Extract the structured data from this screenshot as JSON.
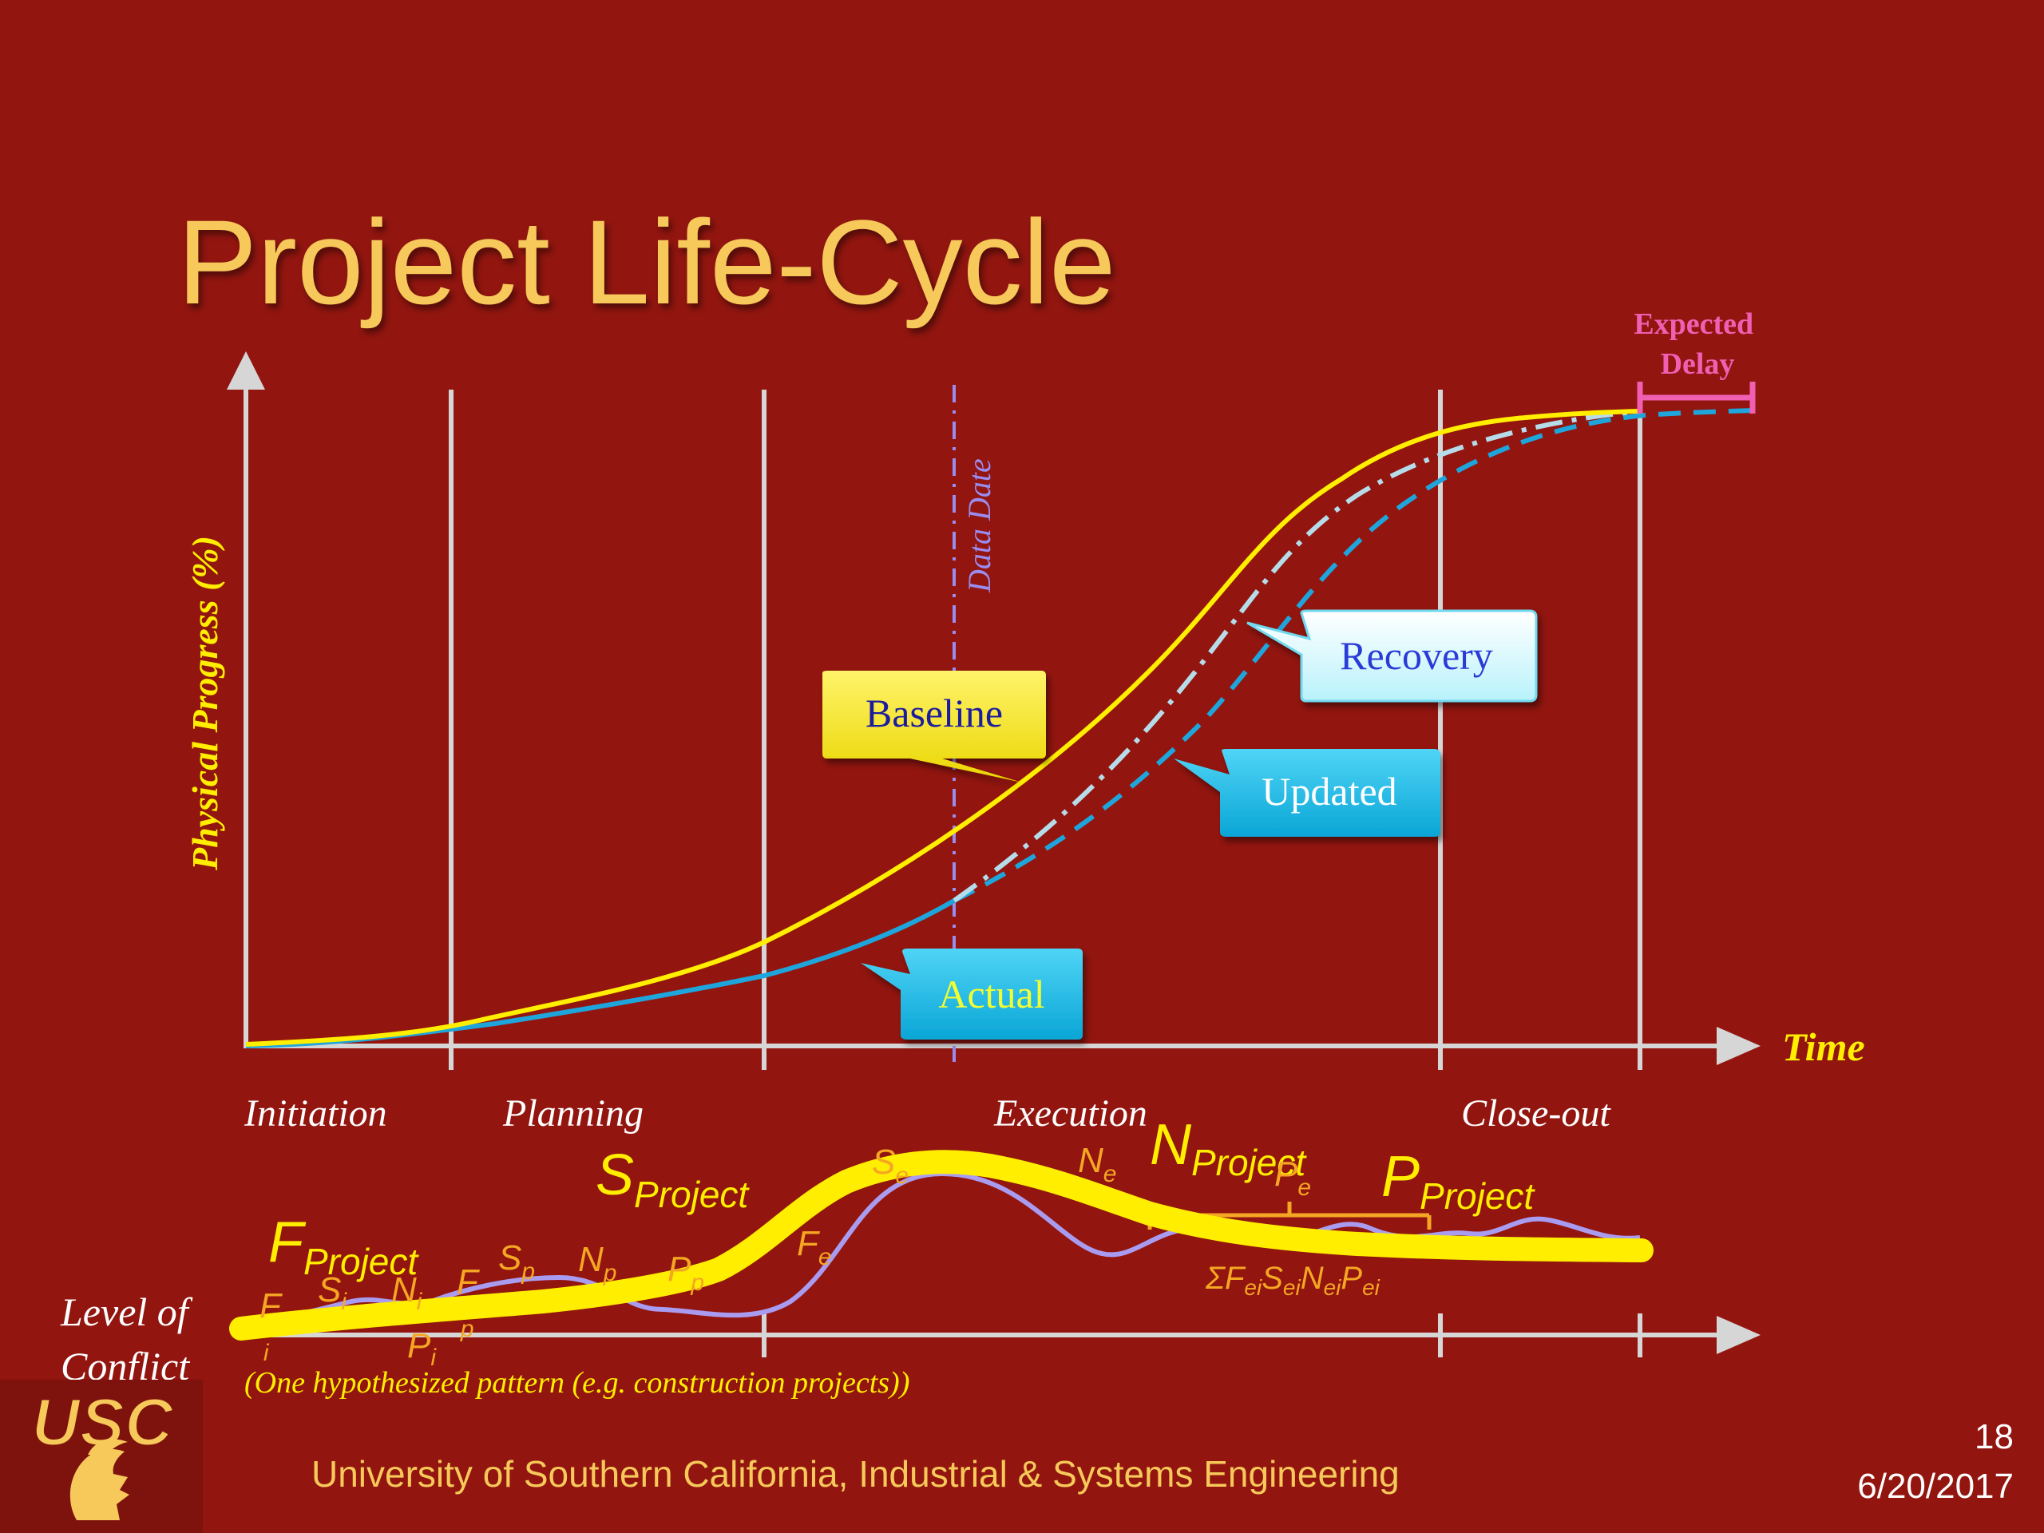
{
  "slide": {
    "title": "Project Life-Cycle",
    "footer": "University of Southern California, Industrial & Systems Engineering",
    "page_number": "18",
    "date": "6/20/2017",
    "logo_text": "USC"
  },
  "upper_chart": {
    "y_axis_label": "Physical Progress (%)",
    "x_axis_label": "Time",
    "data_date_label": "Data Date",
    "expected_delay_label": [
      "Expected",
      "Delay"
    ],
    "phases": [
      "Initiation",
      "Planning",
      "Execution",
      "Close-out"
    ],
    "callouts": {
      "baseline": "Baseline",
      "actual": "Actual",
      "updated": "Updated",
      "recovery": "Recovery"
    }
  },
  "lower_chart": {
    "y_axis_label": [
      "Level of",
      "Conflict"
    ],
    "note": "(One hypothesized pattern (e.g. construction projects))",
    "labels": {
      "f_project": {
        "main": "F",
        "sub": "Project"
      },
      "s_project": {
        "main": "S",
        "sub": "Project"
      },
      "n_project": {
        "main": "N",
        "sub": "Project"
      },
      "p_project": {
        "main": "P",
        "sub": "Project"
      },
      "f_i": {
        "main": "F",
        "sub": "i"
      },
      "s_i": {
        "main": "S",
        "sub": "i"
      },
      "n_i": {
        "main": "N",
        "sub": "i"
      },
      "p_i": {
        "main": "P",
        "sub": "i"
      },
      "f_p": {
        "main": "F",
        "sub": "p"
      },
      "s_p": {
        "main": "S",
        "sub": "p"
      },
      "n_p": {
        "main": "N",
        "sub": "p"
      },
      "p_p": {
        "main": "P",
        "sub": "p"
      },
      "f_e": {
        "main": "F",
        "sub": "e"
      },
      "s_e": {
        "main": "S",
        "sub": "e"
      },
      "n_e": {
        "main": "N",
        "sub": "e"
      },
      "p_e": {
        "main": "P",
        "sub": "e"
      },
      "sum_ei": "ΣF<sub>ei</sub>S<sub>ei</sub>N<sub>ei</sub>P<sub>ei</sub>"
    }
  },
  "colors": {
    "background": "#92150f",
    "title": "#f6c95a",
    "baseline": "#ffee00",
    "actual": "#1ea6dc",
    "recovery": "#b6dcea",
    "data_date": "#9b8cf0",
    "expected_delay": "#f05fb2",
    "conflict_band": "#ffee00",
    "conflict_detail": "#a99cf0"
  }
}
